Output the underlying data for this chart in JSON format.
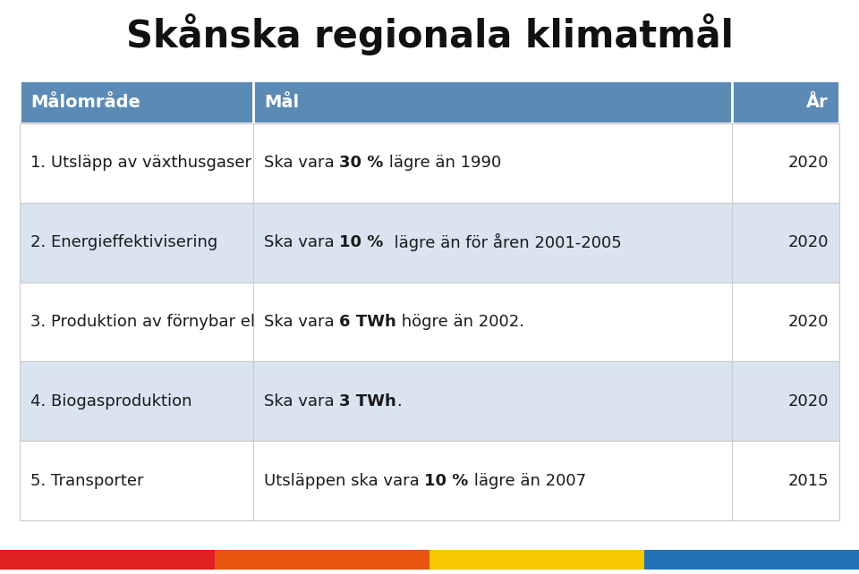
{
  "title": "Skånska regionala klimatmål",
  "header": [
    "Målområde",
    "Mål",
    "År"
  ],
  "rows": [
    {
      "col1": "1. Utsläpp av växthusgaser",
      "col2_parts": [
        {
          "text": "Ska vara ",
          "bold": false
        },
        {
          "text": "30 %",
          "bold": true
        },
        {
          "text": " lägre än 1990",
          "bold": false
        }
      ],
      "col3": "2020",
      "shade": "white"
    },
    {
      "col1": "2. Energieffektivisering",
      "col2_parts": [
        {
          "text": "Ska vara ",
          "bold": false
        },
        {
          "text": "10 %",
          "bold": true
        },
        {
          "text": "  lägre än för åren 2001-2005",
          "bold": false
        }
      ],
      "col3": "2020",
      "shade": "blue"
    },
    {
      "col1": "3. Produktion av förnybar el",
      "col2_parts": [
        {
          "text": "Ska vara ",
          "bold": false
        },
        {
          "text": "6 TWh",
          "bold": true
        },
        {
          "text": " högre än 2002.",
          "bold": false
        }
      ],
      "col3": "2020",
      "shade": "white"
    },
    {
      "col1": "4. Biogasproduktion",
      "col2_parts": [
        {
          "text": "Ska vara ",
          "bold": false
        },
        {
          "text": "3 TWh",
          "bold": true
        },
        {
          "text": ".",
          "bold": false
        }
      ],
      "col3": "2020",
      "shade": "blue"
    },
    {
      "col1": "5. Transporter",
      "col2_parts": [
        {
          "text": "Utsläppen ska vara ",
          "bold": false
        },
        {
          "text": "10 %",
          "bold": true
        },
        {
          "text": " lägre än 2007",
          "bold": false
        }
      ],
      "col3": "2015",
      "shade": "white"
    }
  ],
  "header_bg": "#5b8ab5",
  "white_bg": "#ffffff",
  "blue_bg": "#d9e4f0",
  "text_color": "#1a1a1a",
  "header_text_color": "#ffffff",
  "bottom_colors": [
    "#e02020",
    "#e85510",
    "#f5c800",
    "#2272b5"
  ],
  "title_fontsize": 30,
  "header_fontsize": 14,
  "row_fontsize": 13
}
